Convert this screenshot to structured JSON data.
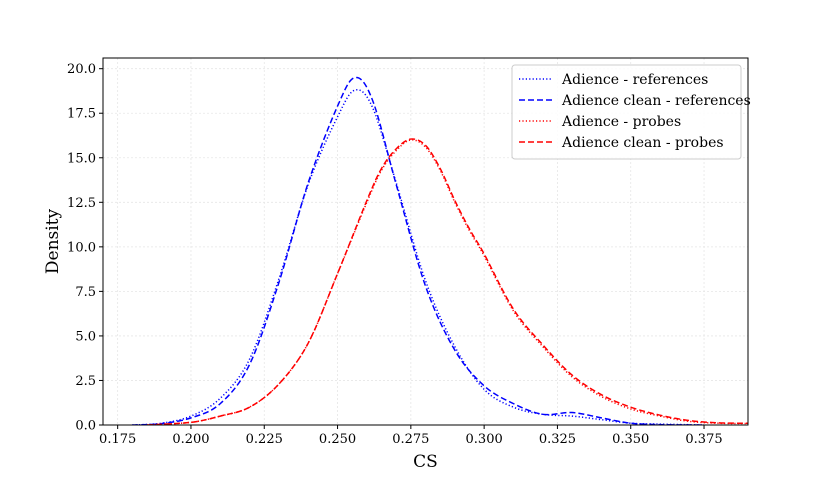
{
  "chart_data": {
    "type": "line",
    "xlabel": "CS",
    "ylabel": "Density",
    "xlim": [
      0.17,
      0.39
    ],
    "ylim": [
      0,
      20.6
    ],
    "x_ticks": [
      "0.175",
      "0.200",
      "0.225",
      "0.250",
      "0.275",
      "0.300",
      "0.325",
      "0.350",
      "0.375"
    ],
    "y_ticks": [
      "0.0",
      "2.5",
      "5.0",
      "7.5",
      "10.0",
      "12.5",
      "15.0",
      "17.5",
      "20.0"
    ],
    "grid": true,
    "legend_position": "top-right",
    "series": [
      {
        "name": "Adience - references",
        "color": "#0000ff",
        "style": "dotted",
        "points": [
          [
            0.18,
            0.0
          ],
          [
            0.19,
            0.1
          ],
          [
            0.2,
            0.5
          ],
          [
            0.21,
            1.5
          ],
          [
            0.22,
            3.7
          ],
          [
            0.23,
            8.2
          ],
          [
            0.24,
            13.5
          ],
          [
            0.25,
            17.3
          ],
          [
            0.256,
            18.8
          ],
          [
            0.262,
            17.8
          ],
          [
            0.27,
            13.6
          ],
          [
            0.28,
            8.1
          ],
          [
            0.29,
            4.4
          ],
          [
            0.3,
            2.0
          ],
          [
            0.31,
            1.0
          ],
          [
            0.32,
            0.6
          ],
          [
            0.33,
            0.5
          ],
          [
            0.34,
            0.3
          ],
          [
            0.35,
            0.1
          ],
          [
            0.36,
            0.05
          ],
          [
            0.375,
            0.0
          ]
        ]
      },
      {
        "name": "Adience clean - references",
        "color": "#0000ff",
        "style": "dashed",
        "points": [
          [
            0.18,
            0.0
          ],
          [
            0.19,
            0.08
          ],
          [
            0.2,
            0.4
          ],
          [
            0.21,
            1.2
          ],
          [
            0.22,
            3.4
          ],
          [
            0.23,
            8.0
          ],
          [
            0.24,
            13.6
          ],
          [
            0.25,
            17.9
          ],
          [
            0.256,
            19.5
          ],
          [
            0.262,
            18.2
          ],
          [
            0.27,
            13.5
          ],
          [
            0.28,
            7.8
          ],
          [
            0.29,
            4.2
          ],
          [
            0.3,
            2.2
          ],
          [
            0.31,
            1.2
          ],
          [
            0.32,
            0.6
          ],
          [
            0.33,
            0.7
          ],
          [
            0.34,
            0.4
          ],
          [
            0.35,
            0.1
          ],
          [
            0.36,
            0.02
          ],
          [
            0.375,
            0.0
          ]
        ]
      },
      {
        "name": "Adience - probes",
        "color": "#ff0000",
        "style": "dotted",
        "points": [
          [
            0.185,
            0.0
          ],
          [
            0.2,
            0.15
          ],
          [
            0.21,
            0.5
          ],
          [
            0.22,
            1.0
          ],
          [
            0.23,
            2.3
          ],
          [
            0.24,
            4.6
          ],
          [
            0.25,
            8.5
          ],
          [
            0.26,
            12.5
          ],
          [
            0.265,
            14.3
          ],
          [
            0.27,
            15.4
          ],
          [
            0.275,
            16.0
          ],
          [
            0.28,
            15.6
          ],
          [
            0.285,
            14.3
          ],
          [
            0.29,
            12.5
          ],
          [
            0.295,
            10.9
          ],
          [
            0.3,
            9.5
          ],
          [
            0.31,
            6.4
          ],
          [
            0.32,
            4.4
          ],
          [
            0.33,
            2.7
          ],
          [
            0.34,
            1.6
          ],
          [
            0.35,
            0.9
          ],
          [
            0.36,
            0.5
          ],
          [
            0.37,
            0.2
          ],
          [
            0.38,
            0.1
          ],
          [
            0.39,
            0.08
          ]
        ]
      },
      {
        "name": "Adience clean - probes",
        "color": "#ff0000",
        "style": "dashed",
        "points": [
          [
            0.185,
            0.0
          ],
          [
            0.2,
            0.15
          ],
          [
            0.21,
            0.5
          ],
          [
            0.22,
            1.0
          ],
          [
            0.23,
            2.3
          ],
          [
            0.24,
            4.6
          ],
          [
            0.25,
            8.5
          ],
          [
            0.26,
            12.6
          ],
          [
            0.265,
            14.4
          ],
          [
            0.27,
            15.5
          ],
          [
            0.275,
            16.05
          ],
          [
            0.28,
            15.7
          ],
          [
            0.285,
            14.4
          ],
          [
            0.29,
            12.6
          ],
          [
            0.295,
            11.0
          ],
          [
            0.3,
            9.6
          ],
          [
            0.31,
            6.5
          ],
          [
            0.32,
            4.5
          ],
          [
            0.33,
            2.8
          ],
          [
            0.34,
            1.7
          ],
          [
            0.35,
            1.0
          ],
          [
            0.36,
            0.55
          ],
          [
            0.37,
            0.25
          ],
          [
            0.38,
            0.12
          ],
          [
            0.39,
            0.1
          ]
        ]
      }
    ]
  }
}
